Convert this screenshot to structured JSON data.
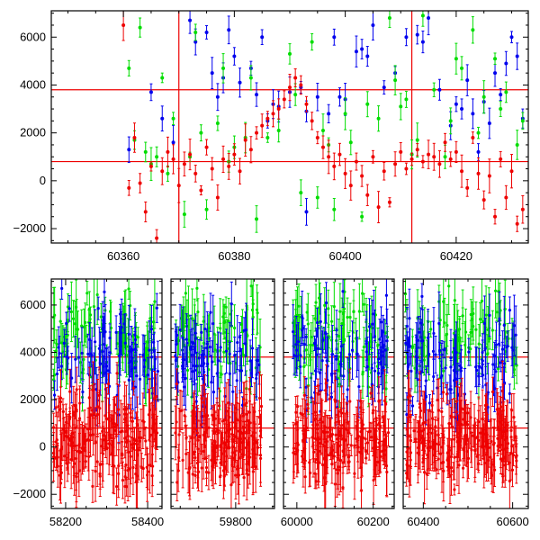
{
  "chart_data": [
    {
      "type": "scatter",
      "title": "",
      "xlabel": "",
      "ylabel": "",
      "xlim": [
        60347,
        60433
      ],
      "ylim": [
        -2600,
        7100
      ],
      "x_ticks": [
        60360,
        60380,
        60400,
        60420
      ],
      "x_tick_labels": [
        "60360",
        "60380",
        "60400",
        "60420"
      ],
      "y_ticks": [
        -2000,
        0,
        2000,
        4000,
        6000
      ],
      "y_tick_labels": [
        "−2000",
        "0",
        "2000",
        "4000",
        "6000"
      ],
      "reference_lines": {
        "horizontal": [
          800,
          3800
        ],
        "vertical": [
          60370,
          60412
        ],
        "color": "#ee0000"
      },
      "series": [
        {
          "color": "#0000ee",
          "points": [
            [
              60361,
              1300
            ],
            [
              60365,
              3700
            ],
            [
              60367,
              2600
            ],
            [
              60369,
              1600
            ],
            [
              60372,
              6700
            ],
            [
              60373,
              5800
            ],
            [
              60375,
              6200
            ],
            [
              60376,
              4500
            ],
            [
              60377,
              3500
            ],
            [
              60378,
              4300
            ],
            [
              60379,
              6300
            ],
            [
              60380,
              5200
            ],
            [
              60381,
              4100
            ],
            [
              60383,
              4700
            ],
            [
              60384,
              3600
            ],
            [
              60385,
              6000
            ],
            [
              60386,
              2500
            ],
            [
              60387,
              3200
            ],
            [
              60388,
              3100
            ],
            [
              60390,
              3700
            ],
            [
              60392,
              3900
            ],
            [
              60393,
              2900
            ],
            [
              60395,
              3500
            ],
            [
              60397,
              2800
            ],
            [
              60398,
              6000
            ],
            [
              60399,
              3500
            ],
            [
              60400,
              3400
            ],
            [
              60402,
              5400
            ],
            [
              60403,
              5500
            ],
            [
              60404,
              5200
            ],
            [
              60405,
              6500
            ],
            [
              60407,
              3900
            ],
            [
              60409,
              4500
            ],
            [
              60411,
              6000
            ],
            [
              60413,
              6100
            ],
            [
              60414,
              5800
            ],
            [
              60415,
              6800
            ],
            [
              60417,
              3800
            ],
            [
              60419,
              2300
            ],
            [
              60420,
              3200
            ],
            [
              60421,
              3000
            ],
            [
              60422,
              4200
            ],
            [
              60423,
              2800
            ],
            [
              60424,
              1200
            ],
            [
              60425,
              3300
            ],
            [
              60426,
              2400
            ],
            [
              60427,
              4500
            ],
            [
              60428,
              3600
            ],
            [
              60429,
              4900
            ],
            [
              60430,
              6000
            ],
            [
              60431,
              5200
            ],
            [
              60432,
              2600
            ],
            [
              60393,
              -1300
            ]
          ]
        },
        {
          "color": "#00dd00",
          "points": [
            [
              60361,
              4700
            ],
            [
              60362,
              1700
            ],
            [
              60363,
              6400
            ],
            [
              60364,
              1200
            ],
            [
              60365,
              700
            ],
            [
              60366,
              1000
            ],
            [
              60367,
              4300
            ],
            [
              60368,
              300
            ],
            [
              60369,
              2600
            ],
            [
              60371,
              -1400
            ],
            [
              60372,
              1000
            ],
            [
              60373,
              6200
            ],
            [
              60374,
              2000
            ],
            [
              60375,
              -1200
            ],
            [
              60377,
              2400
            ],
            [
              60378,
              4700
            ],
            [
              60379,
              800
            ],
            [
              60380,
              1400
            ],
            [
              60382,
              1800
            ],
            [
              60383,
              4300
            ],
            [
              60384,
              -1600
            ],
            [
              60386,
              1800
            ],
            [
              60388,
              2100
            ],
            [
              60390,
              5300
            ],
            [
              60391,
              3600
            ],
            [
              60392,
              -500
            ],
            [
              60394,
              5800
            ],
            [
              60395,
              -700
            ],
            [
              60396,
              2100
            ],
            [
              60397,
              1500
            ],
            [
              60398,
              -1200
            ],
            [
              60400,
              2800
            ],
            [
              60401,
              1600
            ],
            [
              60403,
              -1500
            ],
            [
              60404,
              3200
            ],
            [
              60406,
              2600
            ],
            [
              60408,
              6800
            ],
            [
              60409,
              4200
            ],
            [
              60410,
              3100
            ],
            [
              60411,
              3400
            ],
            [
              60412,
              1100
            ],
            [
              60413,
              1700
            ],
            [
              60414,
              6900
            ],
            [
              60416,
              3800
            ],
            [
              60418,
              1000
            ],
            [
              60419,
              2500
            ],
            [
              60420,
              5100
            ],
            [
              60421,
              4700
            ],
            [
              60423,
              6300
            ],
            [
              60424,
              2000
            ],
            [
              60425,
              3500
            ],
            [
              60427,
              5100
            ],
            [
              60428,
              3000
            ],
            [
              60429,
              3700
            ],
            [
              60431,
              1500
            ],
            [
              60432,
              2500
            ]
          ]
        },
        {
          "color": "#ee0000",
          "points": [
            [
              60360,
              6500
            ],
            [
              60361,
              -300
            ],
            [
              60362,
              1800
            ],
            [
              60363,
              -100
            ],
            [
              60364,
              -1300
            ],
            [
              60365,
              600
            ],
            [
              60366,
              -2400
            ],
            [
              60367,
              400
            ],
            [
              60368,
              1200
            ],
            [
              60369,
              900
            ],
            [
              60370,
              -200
            ],
            [
              60371,
              700
            ],
            [
              60372,
              1100
            ],
            [
              60373,
              300
            ],
            [
              60374,
              -400
            ],
            [
              60375,
              1400
            ],
            [
              60376,
              500
            ],
            [
              60377,
              -700
            ],
            [
              60378,
              900
            ],
            [
              60379,
              600
            ],
            [
              60380,
              1100
            ],
            [
              60381,
              400
            ],
            [
              60382,
              1700
            ],
            [
              60383,
              1300
            ],
            [
              60384,
              2000
            ],
            [
              60385,
              2300
            ],
            [
              60386,
              2600
            ],
            [
              60387,
              2800
            ],
            [
              60388,
              3000
            ],
            [
              60389,
              3400
            ],
            [
              60390,
              3900
            ],
            [
              60391,
              4300
            ],
            [
              60392,
              4000
            ],
            [
              60393,
              3200
            ],
            [
              60394,
              2500
            ],
            [
              60395,
              1800
            ],
            [
              60396,
              1400
            ],
            [
              60397,
              1000
            ],
            [
              60398,
              600
            ],
            [
              60399,
              1100
            ],
            [
              60400,
              300
            ],
            [
              60401,
              -200
            ],
            [
              60402,
              800
            ],
            [
              60403,
              200
            ],
            [
              60404,
              -600
            ],
            [
              60405,
              1000
            ],
            [
              60406,
              -1100
            ],
            [
              60407,
              400
            ],
            [
              60408,
              -900
            ],
            [
              60409,
              700
            ],
            [
              60410,
              1200
            ],
            [
              60411,
              500
            ],
            [
              60412,
              900
            ],
            [
              60413,
              1300
            ],
            [
              60414,
              800
            ],
            [
              60415,
              1100
            ],
            [
              60416,
              1000
            ],
            [
              60417,
              700
            ],
            [
              60418,
              1600
            ],
            [
              60419,
              900
            ],
            [
              60420,
              1200
            ],
            [
              60421,
              400
            ],
            [
              60422,
              -300
            ],
            [
              60423,
              1800
            ],
            [
              60424,
              300
            ],
            [
              60425,
              -800
            ],
            [
              60426,
              200
            ],
            [
              60427,
              -1500
            ],
            [
              60428,
              900
            ],
            [
              60429,
              -700
            ],
            [
              60430,
              400
            ],
            [
              60431,
              -1800
            ],
            [
              60432,
              -1200
            ]
          ]
        }
      ]
    },
    {
      "type": "scatter",
      "title": "",
      "xlabel": "",
      "ylabel": "",
      "ylim": [
        -2600,
        7100
      ],
      "y_ticks": [
        -2000,
        0,
        2000,
        4000,
        6000
      ],
      "y_tick_labels": [
        "−2000",
        "0",
        "2000",
        "4000",
        "6000"
      ],
      "reference_lines": {
        "horizontal": [
          800,
          3800
        ],
        "color": "#ee0000"
      },
      "x_ticks": [
        58200,
        58400,
        59800,
        60000,
        60200,
        60400,
        60600
      ],
      "x_tick_labels": [
        "58200",
        "58400",
        "59800",
        "60000",
        "60200",
        "60400",
        "60600"
      ],
      "segments": [
        {
          "xlim": [
            58165,
            58435
          ],
          "data_range": [
            58170,
            58425
          ]
        },
        {
          "xlim": [
            59625,
            59905
          ],
          "data_range": [
            59635,
            59870
          ]
        },
        {
          "xlim": [
            59965,
            60255
          ],
          "data_range": [
            59990,
            60240
          ]
        },
        {
          "xlim": [
            60355,
            60635
          ],
          "data_range": [
            60360,
            60610
          ]
        }
      ],
      "series": [
        {
          "color": "#0000ee",
          "description_level": "dense",
          "typical_range": [
            1500,
            7000
          ]
        },
        {
          "color": "#00dd00",
          "description_level": "dense",
          "typical_range": [
            2500,
            7000
          ]
        },
        {
          "color": "#ee0000",
          "description_level": "dense",
          "typical_range": [
            -2500,
            5000
          ]
        }
      ]
    }
  ]
}
